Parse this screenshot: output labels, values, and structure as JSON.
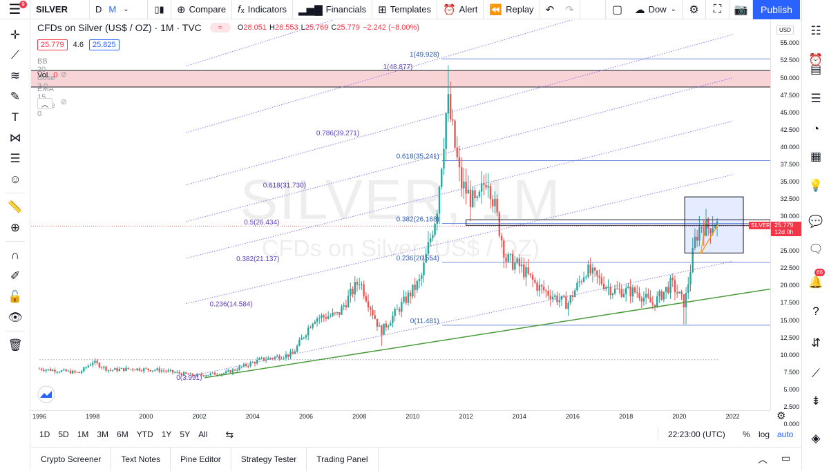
{
  "topbar": {
    "menu_badge": "9",
    "symbol": "SILVER",
    "intervals": [
      "D",
      "M"
    ],
    "compare": "Compare",
    "indicators": "Indicators",
    "financials": "Financials",
    "templates": "Templates",
    "alert": "Alert",
    "replay": "Replay",
    "layout_name": "Dow",
    "publish": "Publish"
  },
  "legend": {
    "title": "CFDs on Silver (US$ / OZ) · 1M · TVC",
    "ohlc": [
      {
        "k": "O",
        "v": "28.051"
      },
      {
        "k": "H",
        "v": "28.553"
      },
      {
        "k": "L",
        "v": "25.769"
      },
      {
        "k": "C",
        "v": "25.779"
      }
    ],
    "change": "−2.242 (−8.00%)",
    "bid": "25.779",
    "spread": "4.6",
    "ask": "25.825",
    "bb": "BB 20 close 2 0",
    "vol_label": "Vol",
    "vol_value": "0",
    "ema": "EMA 15 close 0"
  },
  "watermark": {
    "symbol": "SILVER, 1M",
    "description": "CFDs on Silver (US$ / OZ)"
  },
  "price_axis": {
    "currency": "USD",
    "labels": [
      "55.000",
      "52.500",
      "50.000",
      "47.500",
      "45.000",
      "42.500",
      "40.000",
      "37.500",
      "35.000",
      "32.500",
      "30.000",
      "27.500",
      "25.000",
      "22.500",
      "20.000",
      "17.500",
      "15.000",
      "12.500",
      "10.000",
      "7.500",
      "5.000",
      "2.500",
      "0.000"
    ],
    "last_price": "25.779",
    "countdown": "12d 0h",
    "symbol_tag": "SILVER"
  },
  "time_axis": {
    "labels": [
      "1996",
      "1998",
      "2000",
      "2002",
      "2004",
      "2006",
      "2008",
      "2010",
      "2012",
      "2014",
      "2016",
      "2018",
      "2020",
      "2022"
    ]
  },
  "fib_left": [
    {
      "label": "1(48.877)",
      "price": 48.877
    },
    {
      "label": "0.786(39.271)",
      "price": 39.271
    },
    {
      "label": "0.618(31.730)",
      "price": 31.73
    },
    {
      "label": "0.5(26.434)",
      "price": 26.434
    },
    {
      "label": "0.382(21.137)",
      "price": 21.137
    },
    {
      "label": "0.236(14.584)",
      "price": 14.584
    },
    {
      "label": "0(3.991)",
      "price": 3.991
    }
  ],
  "fib_right": [
    {
      "label": "1(49.928)",
      "price": 49.928
    },
    {
      "label": "0.618(35.241)",
      "price": 35.241
    },
    {
      "label": "0.382(26.168)",
      "price": 26.168
    },
    {
      "label": "0.236(20.554)",
      "price": 20.554
    },
    {
      "label": "0(11.481)",
      "price": 11.481
    }
  ],
  "range_bar": {
    "ranges": [
      "1D",
      "5D",
      "1M",
      "3M",
      "6M",
      "YTD",
      "1Y",
      "5Y",
      "All"
    ],
    "clock": "22:23:00 (UTC)",
    "percent": "%",
    "log": "log",
    "auto": "auto"
  },
  "bottom_tabs": [
    "Crypto Screener",
    "Text Notes",
    "Pine Editor",
    "Strategy Tester",
    "Trading Panel"
  ],
  "right_sidebar": {
    "badge": "66"
  },
  "colors": {
    "up": "#26a69a",
    "down": "#ef5350",
    "accent": "#2962ff",
    "fib_channel": "#7b68ee",
    "trendline": "#4caf50"
  }
}
